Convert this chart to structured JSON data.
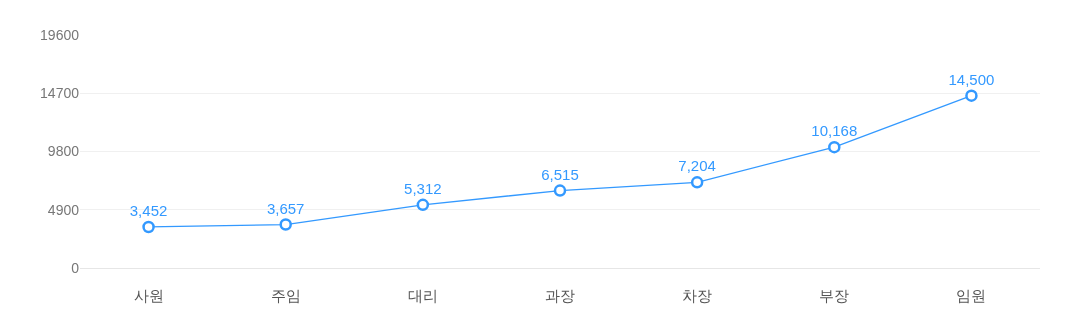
{
  "chart_data": {
    "type": "line",
    "categories": [
      "사원",
      "주임",
      "대리",
      "과장",
      "차장",
      "부장",
      "임원"
    ],
    "series": [
      {
        "color": "#3399ff",
        "values": [
          3452,
          3657,
          5312,
          6515,
          7204,
          10168,
          14500
        ],
        "value_labels": [
          "3,452",
          "3,657",
          "5,312",
          "6,515",
          "7,204",
          "10,168",
          "14,500"
        ]
      }
    ],
    "ylim": [
      0,
      19600
    ],
    "yticks": [
      0,
      4900,
      9800,
      14700,
      19600
    ],
    "grid": "y",
    "marker": "circle",
    "line_style": "solid"
  }
}
